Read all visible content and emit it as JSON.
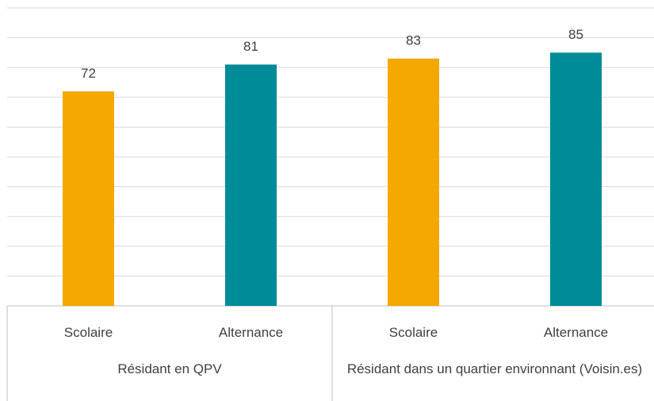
{
  "chart_data": {
    "type": "bar",
    "groups": [
      {
        "label": "Résidant en QPV",
        "categories": [
          "Scolaire",
          "Alternance"
        ]
      },
      {
        "label": "Résidant dans un quartier environnant (Voisin.es)",
        "categories": [
          "Scolaire",
          "Alternance"
        ]
      }
    ],
    "values": [
      72,
      81,
      83,
      85
    ],
    "colors": [
      "#f5a800",
      "#008b99",
      "#f5a800",
      "#008b99"
    ],
    "ylim": [
      0,
      100
    ],
    "yticks": [
      0,
      10,
      20,
      30,
      40,
      50,
      60,
      70,
      80,
      90,
      100
    ],
    "ytick_labels": false,
    "grid": true,
    "data_labels": true
  }
}
